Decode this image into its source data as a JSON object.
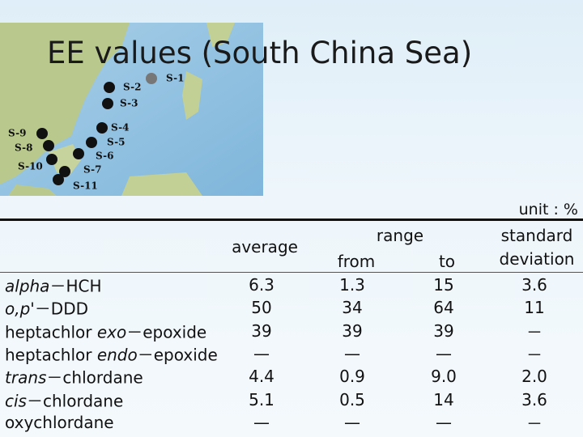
{
  "title": "EE values (South China Sea)",
  "map": {
    "stations": [
      {
        "label": "S-1"
      },
      {
        "label": "S-2"
      },
      {
        "label": "S-3"
      },
      {
        "label": "S-4"
      },
      {
        "label": "S-5"
      },
      {
        "label": "S-6"
      },
      {
        "label": "S-7"
      },
      {
        "label": "S-8"
      },
      {
        "label": "S-9"
      },
      {
        "label": "S-10"
      },
      {
        "label": "S-11"
      }
    ]
  },
  "unit": "unit : %",
  "table": {
    "header": {
      "average": "average",
      "range": "range",
      "from": "from",
      "to": "to",
      "sd": [
        "standard",
        "deviation"
      ]
    },
    "rows": [
      {
        "name": [
          {
            "text": "alpha",
            "italic": true
          },
          {
            "text": "－HCH",
            "italic": false
          }
        ],
        "cells": [
          "6.3",
          "1.3",
          "15",
          "3.6"
        ]
      },
      {
        "name": [
          {
            "text": "o,p'",
            "italic": true
          },
          {
            "text": "－DDD",
            "italic": false
          }
        ],
        "cells": [
          "50",
          "34",
          "64",
          "11"
        ]
      },
      {
        "name": [
          {
            "text": "heptachlor ",
            "italic": false
          },
          {
            "text": "exo",
            "italic": true
          },
          {
            "text": "－epoxide",
            "italic": false
          }
        ],
        "cells": [
          "39",
          "39",
          "39",
          "－"
        ]
      },
      {
        "name": [
          {
            "text": "heptachlor ",
            "italic": false
          },
          {
            "text": "endo",
            "italic": true
          },
          {
            "text": "－epoxide",
            "italic": false
          }
        ],
        "cells": [
          "—",
          "—",
          "—",
          "－"
        ]
      },
      {
        "name": [
          {
            "text": "trans",
            "italic": true
          },
          {
            "text": "－chlordane",
            "italic": false
          }
        ],
        "cells": [
          "4.4",
          "0.9",
          "9.0",
          "2.0"
        ]
      },
      {
        "name": [
          {
            "text": "cis",
            "italic": true
          },
          {
            "text": "－chlordane",
            "italic": false
          }
        ],
        "cells": [
          "5.1",
          "0.5",
          "14",
          "3.6"
        ]
      },
      {
        "name": [
          {
            "text": "oxychlordane",
            "italic": false
          }
        ],
        "cells": [
          "—",
          "—",
          "—",
          "－"
        ]
      }
    ]
  }
}
